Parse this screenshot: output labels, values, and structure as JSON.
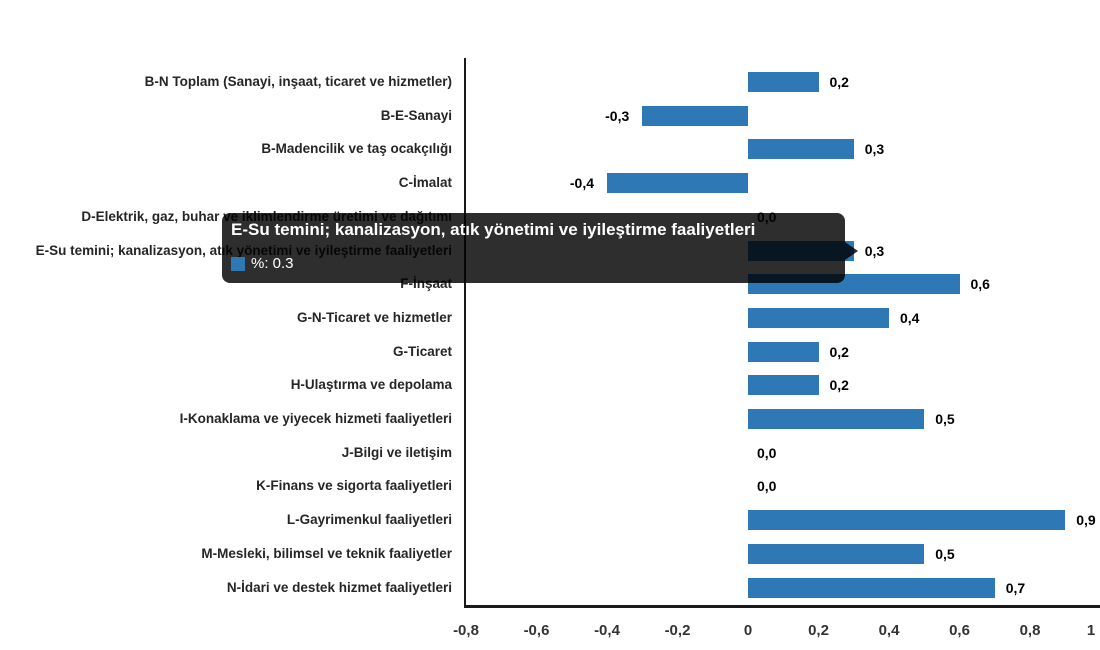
{
  "chart_data": {
    "type": "bar",
    "orientation": "horizontal",
    "title": "",
    "xlabel": "",
    "ylabel": "",
    "xlim": [
      -0.8,
      1.0
    ],
    "grid": false,
    "legend": "none",
    "bar_color": "#2e78b5",
    "categories": [
      "B-N Toplam (Sanayi, inşaat, ticaret ve hizmetler)",
      "B-E-Sanayi",
      "B-Madencilik ve taş ocakçılığı",
      "C-İmalat",
      "D-Elektrik, gaz, buhar ve iklimlendirme üretimi ve dağıtımı",
      "E-Su temini; kanalizasyon, atık yönetimi ve iyileştirme faaliyetleri",
      "F-İnşaat",
      "G-N-Ticaret ve hizmetler",
      "G-Ticaret",
      "H-Ulaştırma ve depolama",
      "I-Konaklama ve yiyecek hizmeti faaliyetleri",
      "J-Bilgi ve iletişim",
      "K-Finans ve sigorta faaliyetleri",
      "L-Gayrimenkul faaliyetleri",
      "M-Mesleki, bilimsel ve teknik faaliyetler",
      "N-İdari ve destek hizmet faaliyetleri"
    ],
    "values": [
      0.2,
      -0.3,
      0.3,
      -0.4,
      0.0,
      0.3,
      0.6,
      0.4,
      0.2,
      0.2,
      0.5,
      0.0,
      0.0,
      0.9,
      0.5,
      0.7
    ],
    "value_labels": [
      "0,2",
      "-0,3",
      "0,3",
      "-0,4",
      "0,0",
      "0,3",
      "0,6",
      "0,4",
      "0,2",
      "0,2",
      "0,5",
      "0,0",
      "0,0",
      "0,9",
      "0,5",
      "0,7"
    ],
    "x_ticks": [
      {
        "value": -0.8,
        "label": "-0,8"
      },
      {
        "value": -0.6,
        "label": "-0,6"
      },
      {
        "value": -0.4,
        "label": "-0,4"
      },
      {
        "value": -0.2,
        "label": "-0,2"
      },
      {
        "value": 0,
        "label": "0"
      },
      {
        "value": 0.2,
        "label": "0,2"
      },
      {
        "value": 0.4,
        "label": "0,4"
      },
      {
        "value": 0.6,
        "label": "0,6"
      },
      {
        "value": 0.8,
        "label": "0,8"
      },
      {
        "value": 1,
        "label": "1"
      }
    ]
  },
  "tooltip": {
    "title": "E-Su temini; kanalizasyon, atık yönetimi ve iyileştirme faaliyetleri",
    "value_line": "%: 0.3",
    "marker_color": "#2e78b5",
    "category_index": 5
  }
}
